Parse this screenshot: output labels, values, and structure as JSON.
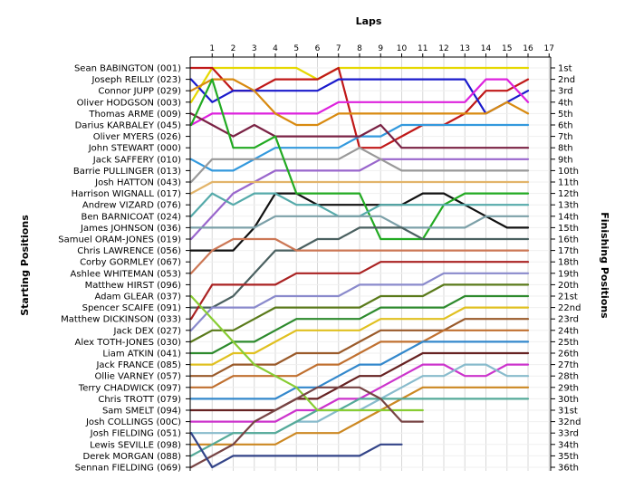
{
  "chart_data": {
    "type": "line",
    "title": "Laps",
    "ylabel_left": "Starting Positions",
    "ylabel_right": "Finishing Positions",
    "laps": [
      "1",
      "2",
      "3",
      "4",
      "5",
      "6",
      "7",
      "8",
      "9",
      "10",
      "11",
      "12",
      "13",
      "14",
      "15",
      "16",
      "17"
    ],
    "starting_positions": [
      "Sean BABINGTON (001)",
      "Joseph REILLY (023)",
      "Connor JUPP (029)",
      "Oliver HODGSON (003)",
      "Thomas ARME (009)",
      "Darius KARBALEY (045)",
      "Oliver MYERS (026)",
      "John STEWART (000)",
      "Jack SAFFERY (010)",
      "Barrie PULLINGER (013)",
      "Josh HATTON (043)",
      "Harrison WIGNALL (017)",
      "Andrew VIZARD (076)",
      "Ben BARNICOAT (024)",
      "James JOHNSON (036)",
      "Samuel ORAM-JONES (019)",
      "Chris LAWRENCE (056)",
      "Corby GORMLEY (067)",
      "Ashlee WHITEMAN (053)",
      "Matthew HIRST (096)",
      "Adam GLEAR (037)",
      "Spencer SCAIFE (091)",
      "Matthew DICKINSON (033)",
      "Jack DEX (027)",
      "Alex TOTH-JONES (030)",
      "Liam ATKIN (041)",
      "Jack FRANCE (085)",
      "Ollie VARNEY (057)",
      "Terry CHADWICK (097)",
      "Chris TROTT (079)",
      "Sam SMELT (094)",
      "Josh COLLINGS (00C)",
      "Josh FIELDING (051)",
      "Lewis SEVILLE (098)",
      "Derek MORGAN (088)",
      "Sennan FIELDING (069)"
    ],
    "finishing_positions": [
      "1st",
      "2nd",
      "3rd",
      "4th",
      "5th",
      "6th",
      "7th",
      "8th",
      "9th",
      "10th",
      "11th",
      "12th",
      "13th",
      "14th",
      "15th",
      "16th",
      "17th",
      "18th",
      "19th",
      "20th",
      "21st",
      "22nd",
      "23rd",
      "24th",
      "25th",
      "26th",
      "27th",
      "28th",
      "29th",
      "30th",
      "31st",
      "32nd",
      "33rd",
      "34th",
      "35th",
      "36th"
    ],
    "series": [
      {
        "color": "#e6d800",
        "values": [
          4,
          1,
          1,
          1,
          1,
          1,
          2,
          1,
          1,
          1,
          1,
          1,
          1,
          1,
          1,
          1,
          1
        ]
      },
      {
        "color": "#c01818",
        "values": [
          1,
          1,
          3,
          3,
          2,
          2,
          2,
          1,
          8,
          8,
          7,
          6,
          6,
          5,
          3,
          3,
          2
        ]
      },
      {
        "color": "#1a1acc",
        "values": [
          2,
          4,
          3,
          3,
          3,
          3,
          3,
          2,
          2,
          2,
          2,
          2,
          2,
          2,
          5,
          4,
          3
        ]
      },
      {
        "color": "#dd22dd",
        "values": [
          6,
          5,
          5,
          5,
          5,
          5,
          5,
          4,
          4,
          4,
          4,
          4,
          4,
          4,
          2,
          2,
          4
        ]
      },
      {
        "color": "#d88a10",
        "values": [
          3,
          2,
          2,
          3,
          5,
          6,
          6,
          5,
          5,
          5,
          5,
          5,
          5,
          5,
          5,
          4,
          5
        ]
      },
      {
        "color": "#3399dd",
        "values": [
          9,
          10,
          10,
          9,
          8,
          8,
          8,
          8,
          7,
          7,
          6,
          6,
          6,
          6,
          6,
          6,
          6
        ]
      },
      {
        "color": "#7a2244",
        "values": [
          5,
          6,
          7,
          6,
          7,
          7,
          7,
          7,
          7,
          6,
          8,
          8,
          8,
          8,
          8,
          8,
          8
        ]
      },
      {
        "color": "#9966cc",
        "values": [
          16,
          14,
          12,
          11,
          10,
          10,
          10,
          10,
          10,
          9,
          9,
          9,
          9,
          9,
          9,
          9,
          9
        ]
      },
      {
        "color": "#999999",
        "values": [
          11,
          9,
          9,
          9,
          9,
          9,
          9,
          9,
          8,
          9,
          10,
          10,
          10,
          10,
          10,
          10,
          10
        ]
      },
      {
        "color": "#e2b46a",
        "values": [
          12,
          11,
          11,
          11,
          11,
          11,
          11,
          11,
          11,
          11,
          11,
          11,
          11,
          11,
          11,
          11,
          11
        ]
      },
      {
        "color": "#111111",
        "values": [
          17,
          17,
          17,
          15,
          12,
          12,
          13,
          13,
          13,
          13,
          13,
          12,
          12,
          13,
          14,
          15,
          15
        ]
      },
      {
        "color": "#22aa22",
        "values": [
          6,
          2,
          8,
          8,
          7,
          12,
          12,
          12,
          12,
          16,
          16,
          16,
          13,
          12,
          12,
          12,
          12
        ]
      },
      {
        "color": "#55aaaa",
        "values": [
          14,
          12,
          13,
          12,
          12,
          13,
          13,
          14,
          14,
          13,
          13,
          13,
          13,
          13,
          13,
          13,
          13
        ]
      },
      {
        "color": "#7ca0a8",
        "values": [
          15,
          15,
          15,
          15,
          14,
          14,
          14,
          14,
          14,
          14,
          15,
          15,
          15,
          15,
          14,
          14,
          14
        ]
      },
      {
        "color": "#4a6060",
        "values": [
          22,
          22,
          21,
          19,
          17,
          17,
          16,
          16,
          15,
          15,
          15,
          16,
          16,
          16,
          16,
          16,
          16
        ]
      },
      {
        "color": "#cc7755",
        "values": [
          19,
          17,
          16,
          16,
          16,
          17,
          17,
          17,
          17,
          17,
          17,
          17,
          17,
          17,
          17,
          17,
          17
        ]
      },
      {
        "color": "#aa2222",
        "values": [
          23,
          20,
          20,
          20,
          20,
          19,
          19,
          19,
          19,
          18,
          18,
          18,
          18,
          18,
          18,
          18,
          18
        ]
      },
      {
        "color": "#8a8acc",
        "values": [
          24,
          22,
          22,
          22,
          21,
          21,
          21,
          21,
          20,
          20,
          20,
          20,
          19,
          19,
          19,
          19,
          19
        ]
      },
      {
        "color": "#5a7a1a",
        "values": [
          25,
          24,
          24,
          23,
          22,
          22,
          22,
          22,
          22,
          21,
          21,
          21,
          20,
          20,
          20,
          20,
          20
        ]
      },
      {
        "color": "#2d8a2d",
        "values": [
          26,
          26,
          25,
          25,
          24,
          23,
          23,
          23,
          23,
          22,
          22,
          22,
          22,
          21,
          21,
          21,
          21
        ]
      },
      {
        "color": "#e0c020",
        "values": [
          27,
          27,
          26,
          26,
          25,
          24,
          24,
          24,
          24,
          23,
          23,
          23,
          23,
          22,
          22,
          22,
          22
        ]
      },
      {
        "color": "#9a5a2a",
        "values": [
          28,
          28,
          27,
          27,
          27,
          26,
          26,
          26,
          25,
          24,
          24,
          24,
          24,
          23,
          23,
          23,
          23
        ]
      },
      {
        "color": "#c07030",
        "values": [
          29,
          29,
          28,
          28,
          28,
          28,
          27,
          27,
          26,
          25,
          25,
          25,
          24,
          24,
          24,
          24,
          24
        ]
      },
      {
        "color": "#3388cc",
        "values": [
          30,
          30,
          30,
          30,
          30,
          29,
          29,
          28,
          27,
          27,
          26,
          25,
          25,
          25,
          25,
          25,
          25
        ]
      },
      {
        "color": "#662222",
        "values": [
          31,
          31,
          31,
          31,
          31,
          30,
          30,
          29,
          28,
          28,
          27,
          26,
          26,
          26,
          26,
          26,
          26
        ]
      },
      {
        "color": "#cc33cc",
        "values": [
          32,
          32,
          32,
          32,
          32,
          31,
          31,
          30,
          30,
          29,
          28,
          27,
          27,
          28,
          28,
          27,
          27
        ]
      },
      {
        "color": "#88bbcc",
        "values": [
          33,
          33,
          33,
          33,
          33,
          32,
          32,
          31,
          31,
          30,
          29,
          28,
          28,
          27,
          27,
          28,
          28
        ]
      },
      {
        "color": "#cc8822",
        "values": [
          34,
          34,
          34,
          34,
          34,
          33,
          33,
          33,
          32,
          31,
          30,
          29,
          29,
          29,
          29,
          29,
          29
        ]
      },
      {
        "color": "#55aa99",
        "values": [
          35,
          34,
          33,
          33,
          33,
          32,
          31,
          31,
          30,
          30,
          30,
          30,
          30,
          30,
          30,
          30,
          30
        ]
      },
      {
        "color": "#88cc33",
        "values": [
          21,
          23,
          25,
          27,
          28,
          29,
          31,
          31,
          31,
          31,
          31,
          31
        ]
      },
      {
        "color": "#774444",
        "values": [
          36,
          35,
          34,
          32,
          31,
          30,
          29,
          29,
          29,
          30,
          32,
          32
        ]
      },
      {
        "color": "#334488",
        "values": [
          33,
          36,
          35,
          35,
          35,
          35,
          35,
          35,
          35,
          34,
          34
        ]
      }
    ]
  }
}
